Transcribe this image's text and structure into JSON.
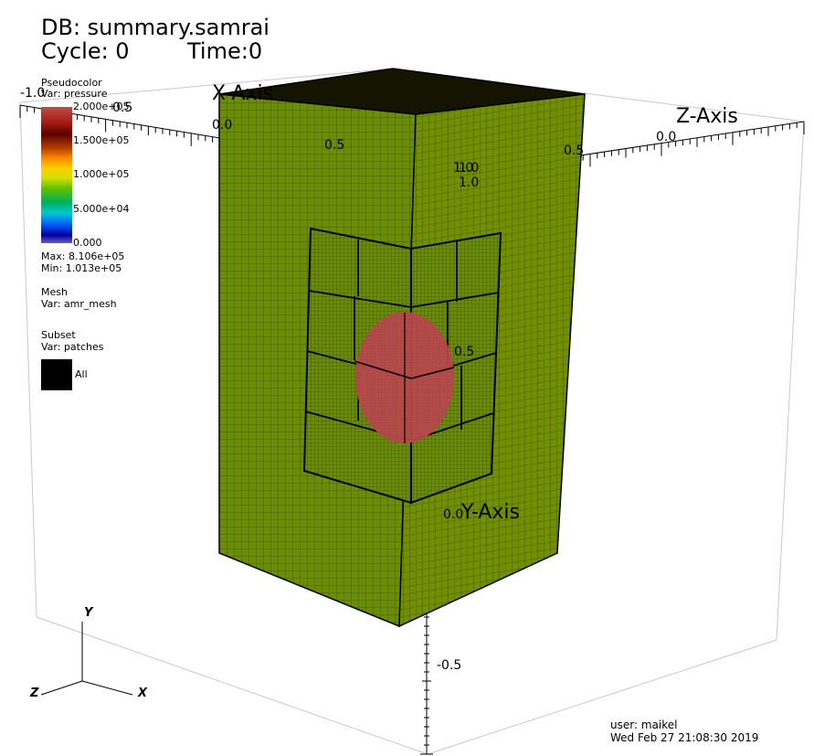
{
  "header": {
    "db": "DB: summary.samrai",
    "cycle": "Cycle: 0",
    "time": "Time:0"
  },
  "legend": {
    "pseudocolor": {
      "title": "Pseudocolor",
      "var": "Var: pressure",
      "ticks": [
        "2.000e+05",
        "1.500e+05",
        "1.000e+05",
        "5.000e+04",
        "0.000"
      ],
      "max": "Max:  8.106e+05",
      "min": "Min:  1.013e+05"
    },
    "mesh": {
      "title": "Mesh",
      "var": "Var: amr_mesh"
    },
    "subset": {
      "title": "Subset",
      "var": "Var: patches",
      "item": "All"
    }
  },
  "axes": {
    "x_label": "X-Axis",
    "y_label": "Y-Axis",
    "z_label": "Z-Axis",
    "x_ticks": [
      "0.0",
      "0.5",
      "1.0"
    ],
    "y_ticks": [
      "1.0",
      "0.5",
      "0.0",
      "-0.5"
    ],
    "z_ticks": [
      "0.0",
      "0.5",
      "1.0"
    ],
    "corner_tick": "-1.0"
  },
  "triad": {
    "x": "X",
    "y": "Y",
    "z": "Z"
  },
  "footer": {
    "user": "user: maikel",
    "date": "Wed Feb 27 21:08:30 2019"
  },
  "colors": {
    "mesh_fill": "#6b8e00",
    "mesh_line": "#2a3a00",
    "sphere": "#b84a4e",
    "background": "#ffffff"
  }
}
